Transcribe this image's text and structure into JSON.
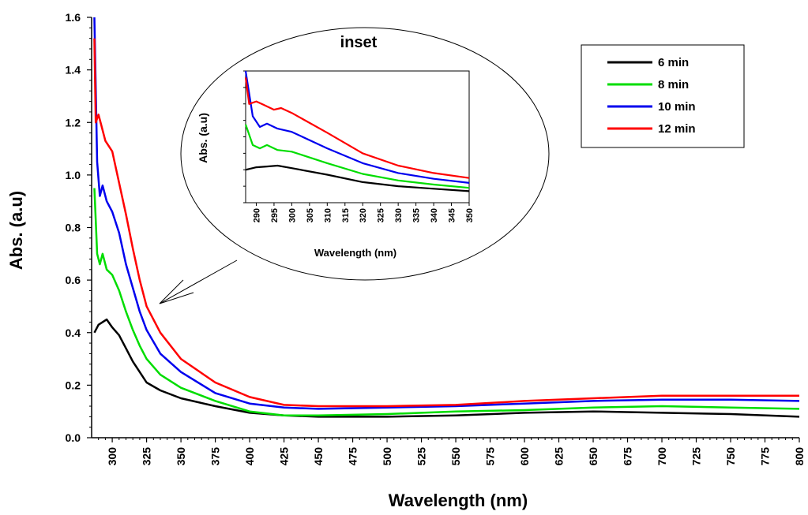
{
  "chart_data": {
    "type": "line",
    "xlabel": "Wavelength (nm)",
    "ylabel": "Abs. (a.u)",
    "xlim": [
      285,
      800
    ],
    "ylim": [
      0.0,
      1.6
    ],
    "x_ticks": [
      300,
      325,
      350,
      375,
      400,
      425,
      450,
      475,
      500,
      525,
      550,
      575,
      600,
      625,
      650,
      675,
      700,
      725,
      750,
      775,
      800
    ],
    "y_ticks": [
      "0.0",
      "0.2",
      "0.4",
      "0.6",
      "0.8",
      "1.0",
      "1.2",
      "1.4",
      "1.6"
    ],
    "legend_position": "top-right",
    "series": [
      {
        "name": "6 min",
        "color": "#000000",
        "x": [
          287,
          290,
          293,
          296,
          300,
          305,
          310,
          315,
          320,
          325,
          335,
          350,
          375,
          400,
          425,
          450,
          500,
          550,
          600,
          650,
          700,
          750,
          800
        ],
        "y": [
          0.4,
          0.43,
          0.44,
          0.45,
          0.42,
          0.39,
          0.34,
          0.29,
          0.25,
          0.21,
          0.18,
          0.15,
          0.12,
          0.095,
          0.085,
          0.08,
          0.08,
          0.085,
          0.095,
          0.1,
          0.095,
          0.09,
          0.08
        ]
      },
      {
        "name": "8 min",
        "color": "#00dd00",
        "x": [
          287,
          289,
          291,
          293,
          296,
          300,
          305,
          310,
          315,
          320,
          325,
          335,
          350,
          375,
          400,
          425,
          450,
          500,
          550,
          600,
          650,
          700,
          750,
          800
        ],
        "y": [
          0.95,
          0.7,
          0.66,
          0.7,
          0.64,
          0.62,
          0.56,
          0.48,
          0.41,
          0.35,
          0.3,
          0.24,
          0.19,
          0.14,
          0.1,
          0.085,
          0.085,
          0.09,
          0.1,
          0.105,
          0.115,
          0.12,
          0.115,
          0.11
        ]
      },
      {
        "name": "10 min",
        "color": "#0000ee",
        "x": [
          287,
          289,
          291,
          293,
          296,
          300,
          305,
          310,
          315,
          320,
          325,
          335,
          350,
          375,
          400,
          425,
          450,
          500,
          550,
          600,
          650,
          700,
          750,
          800
        ],
        "y": [
          1.6,
          1.05,
          0.92,
          0.96,
          0.9,
          0.86,
          0.78,
          0.66,
          0.57,
          0.48,
          0.41,
          0.32,
          0.25,
          0.17,
          0.13,
          0.115,
          0.11,
          0.115,
          0.12,
          0.13,
          0.14,
          0.145,
          0.145,
          0.14
        ]
      },
      {
        "name": "12 min",
        "color": "#ff0000",
        "x": [
          287,
          288,
          290,
          292,
          295,
          300,
          305,
          310,
          315,
          320,
          325,
          335,
          350,
          375,
          400,
          425,
          450,
          500,
          550,
          600,
          650,
          700,
          750,
          800
        ],
        "y": [
          1.52,
          1.2,
          1.23,
          1.19,
          1.13,
          1.09,
          0.97,
          0.85,
          0.72,
          0.6,
          0.5,
          0.4,
          0.3,
          0.21,
          0.155,
          0.125,
          0.12,
          0.12,
          0.125,
          0.14,
          0.15,
          0.16,
          0.16,
          0.16
        ]
      }
    ],
    "inset": {
      "title": "inset",
      "xlabel": "Wavelength (nm)",
      "ylabel": "Abs. (a.u)",
      "xlim": [
        287,
        350
      ],
      "ylim": [
        0.0,
        1.6
      ],
      "x_ticks": [
        290,
        295,
        300,
        305,
        310,
        315,
        320,
        325,
        330,
        335,
        340,
        345,
        350
      ],
      "series": [
        {
          "name": "6 min",
          "color": "#000000",
          "x": [
            287,
            290,
            293,
            296,
            300,
            310,
            320,
            330,
            340,
            350
          ],
          "y": [
            0.4,
            0.43,
            0.44,
            0.45,
            0.42,
            0.34,
            0.25,
            0.2,
            0.17,
            0.14
          ]
        },
        {
          "name": "8 min",
          "color": "#00dd00",
          "x": [
            287,
            289,
            291,
            293,
            295,
            296,
            300,
            310,
            320,
            330,
            340,
            350
          ],
          "y": [
            0.95,
            0.7,
            0.66,
            0.7,
            0.66,
            0.64,
            0.62,
            0.48,
            0.35,
            0.27,
            0.22,
            0.18
          ]
        },
        {
          "name": "10 min",
          "color": "#0000ee",
          "x": [
            287,
            289,
            291,
            293,
            295,
            296,
            300,
            310,
            320,
            330,
            340,
            350
          ],
          "y": [
            1.6,
            1.05,
            0.92,
            0.96,
            0.92,
            0.9,
            0.86,
            0.66,
            0.48,
            0.36,
            0.29,
            0.24
          ]
        },
        {
          "name": "12 min",
          "color": "#ff0000",
          "x": [
            287,
            288,
            290,
            292,
            295,
            297,
            300,
            310,
            320,
            330,
            340,
            350
          ],
          "y": [
            1.52,
            1.2,
            1.23,
            1.19,
            1.13,
            1.15,
            1.09,
            0.85,
            0.6,
            0.45,
            0.36,
            0.3
          ]
        }
      ]
    }
  }
}
